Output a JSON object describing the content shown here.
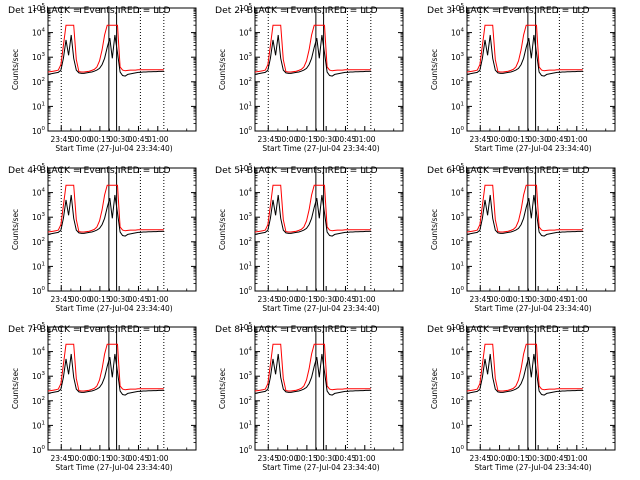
{
  "figure": {
    "background": "#ffffff",
    "events_color": "#000000",
    "lld_color": "#ff0000"
  },
  "chart_data": [
    {
      "type": "line",
      "title": "Det 1r BLACK = Events, RED = LLD"
    },
    {
      "type": "line",
      "title": "Det 2r BLACK = Events, RED = LLD"
    },
    {
      "type": "line",
      "title": "Det 3r BLACK = Events, RED = LLD"
    },
    {
      "type": "line",
      "title": "Det 4r BLACK = Events, RED = LLD"
    },
    {
      "type": "line",
      "title": "Det 5r BLACK = Events, RED = LLD"
    },
    {
      "type": "line",
      "title": "Det 6r BLACK = Events, RED = LLD"
    },
    {
      "type": "line",
      "title": "Det 7r BLACK = Events, RED = LLD"
    },
    {
      "type": "line",
      "title": "Det 8r BLACK = Events, RED = LLD"
    },
    {
      "type": "line",
      "title": "Det 9r BLACK = Events, RED = LLD"
    }
  ],
  "shared": {
    "xlabel": "Start Time (27-Jul-04 23:34:40)",
    "ylabel": "Counts/sec",
    "xticks": [
      "23:45",
      "00:00",
      "00:15",
      "00:30",
      "00:45",
      "01:00"
    ],
    "yticks": [
      "10",
      "10",
      "10",
      "10",
      "10",
      "10"
    ],
    "ytick_exponents": [
      "0",
      "1",
      "2",
      "3",
      "4",
      "5"
    ],
    "ylim": [
      1,
      100000
    ],
    "yscale": "log",
    "x_minutes_since_start": [
      0,
      2,
      4,
      6,
      8,
      10,
      12,
      14,
      16,
      18,
      20,
      22,
      24,
      26,
      28,
      30,
      32,
      34,
      36,
      38,
      40,
      42,
      44,
      46,
      48,
      50,
      52,
      54,
      56,
      58,
      60,
      62,
      64,
      66,
      68,
      70,
      72,
      74,
      76,
      78,
      80,
      82,
      84,
      86,
      88,
      90
    ],
    "events": [
      200,
      210,
      220,
      230,
      240,
      300,
      900,
      5000,
      1200,
      8000,
      900,
      300,
      230,
      220,
      220,
      230,
      240,
      250,
      270,
      300,
      350,
      500,
      900,
      2500,
      6000,
      900,
      8000,
      1500,
      250,
      180,
      170,
      200,
      210,
      220,
      230,
      240,
      240,
      250,
      250,
      255,
      255,
      260,
      260,
      265,
      265,
      270
    ],
    "lld": [
      250,
      260,
      270,
      280,
      300,
      500,
      3000,
      20000,
      20000,
      20000,
      20000,
      800,
      260,
      250,
      250,
      260,
      270,
      290,
      320,
      400,
      700,
      2000,
      8000,
      20000,
      20000,
      20000,
      20000,
      20000,
      400,
      300,
      280,
      290,
      300,
      300,
      300,
      310,
      310,
      310,
      310,
      310,
      310,
      310,
      310,
      310,
      310,
      310
    ],
    "vlines_dotted_min": [
      10.3,
      71.8,
      90
    ],
    "vlines_solid_min": [
      47.3,
      53.3
    ]
  }
}
